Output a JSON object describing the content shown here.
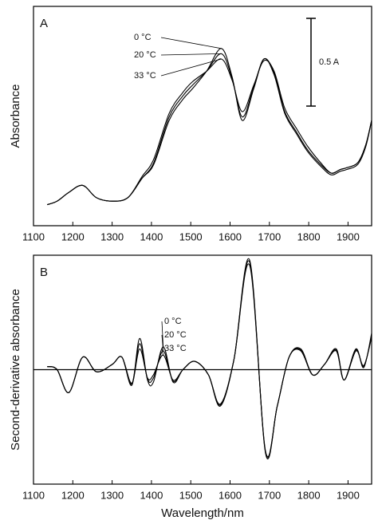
{
  "chart_data": [
    {
      "type": "line",
      "panel_label": "A",
      "y_label": "Absorbance",
      "xlim": [
        1100,
        1960
      ],
      "xticks": [
        1100,
        1200,
        1300,
        1400,
        1500,
        1600,
        1700,
        1800,
        1900
      ],
      "ylim": [
        0,
        1.25
      ],
      "scale_bar": {
        "value": 0.5,
        "label": "0.5 A"
      },
      "x": [
        1135,
        1160,
        1190,
        1225,
        1260,
        1300,
        1340,
        1376,
        1406,
        1445,
        1480,
        1504,
        1540,
        1578,
        1605,
        1631,
        1660,
        1686,
        1712,
        1739,
        1770,
        1798,
        1830,
        1857,
        1880,
        1896,
        1925,
        1945,
        1960
      ],
      "series": [
        {
          "name": "0 °C",
          "color": "#000000",
          "values": [
            0.12,
            0.14,
            0.19,
            0.23,
            0.16,
            0.14,
            0.16,
            0.27,
            0.35,
            0.6,
            0.72,
            0.78,
            0.88,
            1.01,
            0.85,
            0.6,
            0.78,
            0.95,
            0.86,
            0.64,
            0.52,
            0.42,
            0.34,
            0.29,
            0.31,
            0.32,
            0.35,
            0.45,
            0.6
          ]
        },
        {
          "name": "20 °C",
          "color": "#000000",
          "values": [
            0.12,
            0.14,
            0.19,
            0.23,
            0.16,
            0.14,
            0.16,
            0.27,
            0.36,
            0.62,
            0.74,
            0.8,
            0.88,
            0.98,
            0.84,
            0.62,
            0.79,
            0.95,
            0.87,
            0.65,
            0.53,
            0.43,
            0.35,
            0.3,
            0.32,
            0.33,
            0.36,
            0.46,
            0.6
          ]
        },
        {
          "name": "33 °C",
          "color": "#000000",
          "values": [
            0.12,
            0.14,
            0.19,
            0.23,
            0.16,
            0.14,
            0.16,
            0.28,
            0.38,
            0.64,
            0.76,
            0.82,
            0.88,
            0.95,
            0.83,
            0.65,
            0.8,
            0.94,
            0.88,
            0.67,
            0.55,
            0.45,
            0.36,
            0.3,
            0.32,
            0.33,
            0.36,
            0.46,
            0.6
          ]
        }
      ]
    },
    {
      "type": "line",
      "panel_label": "B",
      "y_label": "Second-derivative absorbance",
      "x_label": "Wavelength/nm",
      "xlim": [
        1100,
        1960
      ],
      "xticks": [
        1100,
        1200,
        1300,
        1400,
        1500,
        1600,
        1700,
        1800,
        1900
      ],
      "ylim": [
        -1.1,
        1.1
      ],
      "reference_line": 0,
      "x": [
        1135,
        1160,
        1190,
        1225,
        1260,
        1300,
        1325,
        1350,
        1370,
        1390,
        1405,
        1430,
        1455,
        1480,
        1510,
        1545,
        1575,
        1610,
        1650,
        1690,
        1720,
        1750,
        1780,
        1810,
        1840,
        1870,
        1890,
        1920,
        1940,
        1960
      ],
      "series": [
        {
          "name": "0 °C",
          "color": "#000000",
          "values": [
            0.03,
            0.0,
            -0.22,
            0.12,
            -0.02,
            0.05,
            0.12,
            -0.15,
            0.3,
            -0.1,
            -0.12,
            0.22,
            -0.12,
            0.0,
            0.08,
            -0.05,
            -0.35,
            0.1,
            1.05,
            -0.8,
            -0.35,
            0.12,
            0.2,
            -0.05,
            0.05,
            0.2,
            -0.1,
            0.2,
            0.02,
            0.35
          ]
        },
        {
          "name": "20 °C",
          "color": "#000000",
          "values": [
            0.03,
            0.0,
            -0.22,
            0.12,
            -0.02,
            0.05,
            0.12,
            -0.14,
            0.25,
            -0.09,
            -0.08,
            0.18,
            -0.11,
            0.0,
            0.08,
            -0.05,
            -0.34,
            0.1,
            1.03,
            -0.79,
            -0.35,
            0.12,
            0.19,
            -0.05,
            0.05,
            0.19,
            -0.1,
            0.19,
            0.03,
            0.33
          ]
        },
        {
          "name": "33 °C",
          "color": "#000000",
          "values": [
            0.03,
            0.0,
            -0.22,
            0.12,
            -0.02,
            0.05,
            0.12,
            -0.13,
            0.2,
            -0.08,
            -0.05,
            0.14,
            -0.1,
            0.0,
            0.08,
            -0.05,
            -0.33,
            0.1,
            1.0,
            -0.78,
            -0.35,
            0.12,
            0.18,
            -0.05,
            0.05,
            0.18,
            -0.1,
            0.18,
            0.04,
            0.31
          ]
        }
      ]
    }
  ]
}
